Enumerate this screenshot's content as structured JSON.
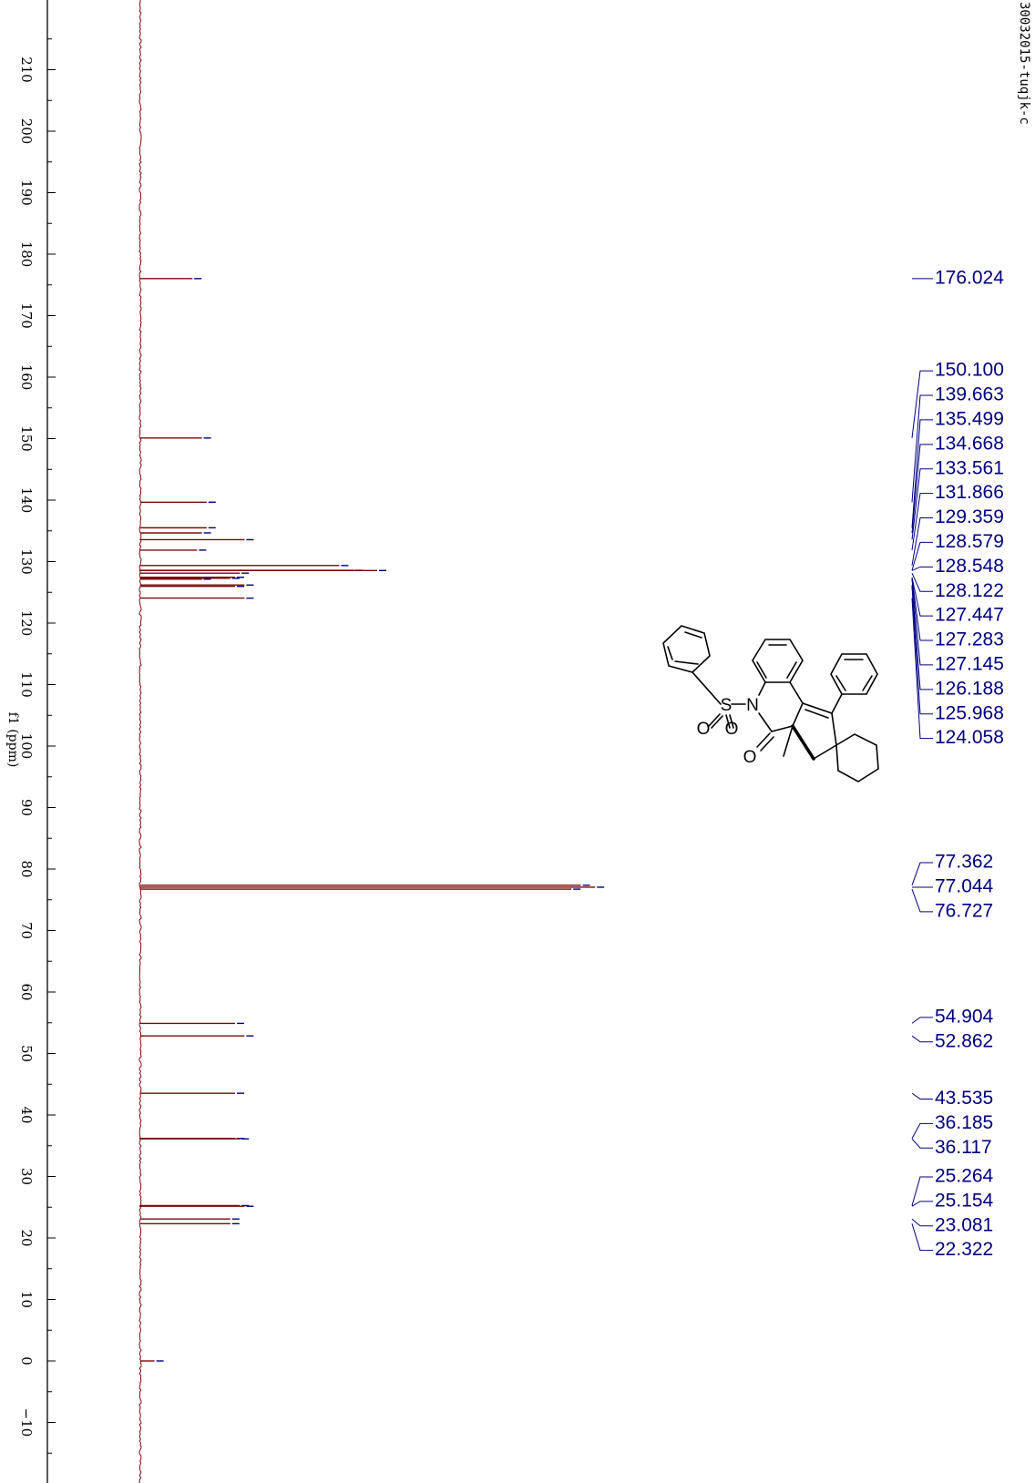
{
  "sample_id": "30032015-tuqjk-c",
  "colors": {
    "spectrum": "#7a0a0a",
    "labels": "#000080",
    "axis": "#000000"
  },
  "chart_data": {
    "type": "line",
    "orientation": "rotated-90",
    "title": "",
    "xlabel": "f1 (ppm)",
    "ylabel": "",
    "xlim": [
      215,
      -19
    ],
    "x_ticks": [
      "210",
      "200",
      "190",
      "180",
      "170",
      "160",
      "150",
      "140",
      "130",
      "120",
      "110",
      "100",
      "90",
      "80",
      "70",
      "60",
      "50",
      "40",
      "30",
      "20",
      "10",
      "0",
      "−10"
    ],
    "series": [
      {
        "peaks": [
          {
            "ppm": 176.024,
            "height": 0.11
          },
          {
            "ppm": 150.1,
            "height": 0.13
          },
          {
            "ppm": 139.663,
            "height": 0.14
          },
          {
            "ppm": 135.499,
            "height": 0.14
          },
          {
            "ppm": 134.668,
            "height": 0.13
          },
          {
            "ppm": 133.561,
            "height": 0.22
          },
          {
            "ppm": 131.866,
            "height": 0.12
          },
          {
            "ppm": 129.359,
            "height": 0.42
          },
          {
            "ppm": 128.579,
            "height": 0.45
          },
          {
            "ppm": 128.548,
            "height": 0.5
          },
          {
            "ppm": 128.122,
            "height": 0.21
          },
          {
            "ppm": 127.447,
            "height": 0.2
          },
          {
            "ppm": 127.283,
            "height": 0.19
          },
          {
            "ppm": 127.145,
            "height": 0.13
          },
          {
            "ppm": 126.188,
            "height": 0.22
          },
          {
            "ppm": 125.968,
            "height": 0.2
          },
          {
            "ppm": 124.058,
            "height": 0.22
          },
          {
            "ppm": 77.362,
            "height": 0.93
          },
          {
            "ppm": 77.044,
            "height": 0.96
          },
          {
            "ppm": 76.727,
            "height": 0.91
          },
          {
            "ppm": 54.904,
            "height": 0.2
          },
          {
            "ppm": 52.862,
            "height": 0.22
          },
          {
            "ppm": 43.535,
            "height": 0.2
          },
          {
            "ppm": 36.185,
            "height": 0.2
          },
          {
            "ppm": 36.117,
            "height": 0.21
          },
          {
            "ppm": 25.264,
            "height": 0.21
          },
          {
            "ppm": 25.154,
            "height": 0.22
          },
          {
            "ppm": 23.081,
            "height": 0.19
          },
          {
            "ppm": 22.322,
            "height": 0.19
          },
          {
            "ppm": 0.0,
            "height": 0.03
          }
        ]
      }
    ],
    "peak_label_groups": [
      [
        "176.024"
      ],
      [
        "150.100",
        "139.663",
        "135.499",
        "134.668",
        "133.561",
        "131.866",
        "129.359",
        "128.579",
        "128.548",
        "128.122",
        "127.447",
        "127.283",
        "127.145",
        "126.188",
        "125.968",
        "124.058"
      ],
      [
        "77.362",
        "77.044",
        "76.727"
      ],
      [
        "54.904",
        "52.862"
      ],
      [
        "43.535",
        "36.185",
        "36.117"
      ],
      [
        "25.264",
        "25.154",
        "23.081",
        "22.322"
      ]
    ]
  },
  "structure": {
    "atom_labels": [
      "N",
      "S",
      "O",
      "O",
      "O"
    ]
  }
}
